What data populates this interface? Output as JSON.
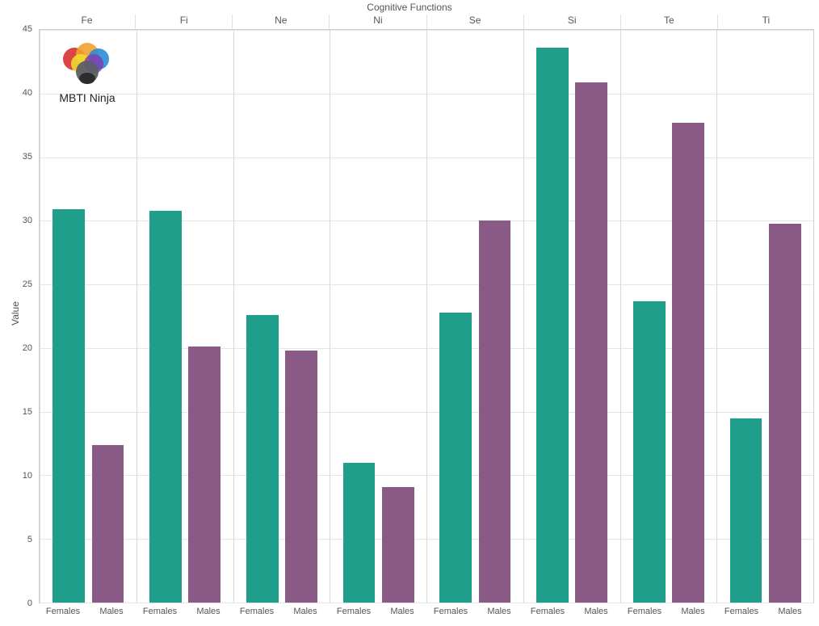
{
  "chart": {
    "type": "bar",
    "title": "Cognitive Functions",
    "title_fontsize": 12,
    "ylabel": "Value",
    "label_fontsize": 12,
    "background_color": "#ffffff",
    "grid_color": "#e5e5e5",
    "panel_border_color": "#d8d8d8",
    "text_color": "#555555",
    "ylim": [
      0,
      45
    ],
    "ytick_step": 5,
    "yticks": [
      0,
      5,
      10,
      15,
      20,
      25,
      30,
      35,
      40,
      45
    ],
    "bar_width": 0.38,
    "categories": [
      "Females",
      "Males"
    ],
    "category_colors": {
      "Females": "#1f9e8c",
      "Males": "#8a5a87"
    },
    "panels": [
      {
        "name": "Fe",
        "values": {
          "Females": 30.9,
          "Males": 12.4
        }
      },
      {
        "name": "Fi",
        "values": {
          "Females": 30.8,
          "Males": 20.1
        }
      },
      {
        "name": "Ne",
        "values": {
          "Females": 22.6,
          "Males": 19.8
        }
      },
      {
        "name": "Ni",
        "values": {
          "Females": 11.0,
          "Males": 9.1
        }
      },
      {
        "name": "Se",
        "values": {
          "Females": 22.8,
          "Males": 30.0
        }
      },
      {
        "name": "Si",
        "values": {
          "Females": 43.6,
          "Males": 40.9
        }
      },
      {
        "name": "Te",
        "values": {
          "Females": 23.7,
          "Males": 37.7
        }
      },
      {
        "name": "Ti",
        "values": {
          "Females": 14.5,
          "Males": 29.8
        }
      }
    ]
  },
  "logo": {
    "text": "MBTI Ninja",
    "cloud_colors": [
      "#d6322f",
      "#f2a12e",
      "#f2e12e",
      "#2e8bd6",
      "#7d3fb0",
      "#5c5f66",
      "#2b2d31"
    ]
  }
}
